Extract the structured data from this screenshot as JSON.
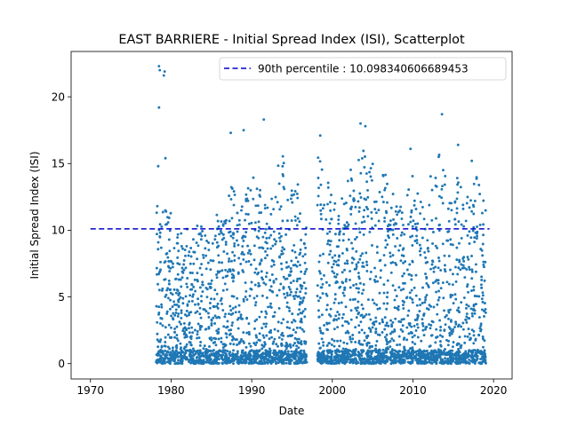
{
  "chart_data": {
    "type": "scatter",
    "title": "EAST BARRIERE - Initial Spread Index (ISI), Scatterplot",
    "xlabel": "Date",
    "ylabel": "Initial Spread Index (ISI)",
    "xlim": [
      1967.6,
      2022.3
    ],
    "ylim": [
      -1.15,
      23.4
    ],
    "x_ticks": [
      1970,
      1980,
      1990,
      2000,
      2010,
      2020
    ],
    "y_ticks": [
      0,
      5,
      10,
      15,
      20
    ],
    "grid": false,
    "legend": {
      "position": "top-right",
      "entries": [
        "90th percentile : 10.098340606689453"
      ]
    },
    "threshold": {
      "name": "90th percentile : 10.098340606689453",
      "value": 10.098340606689453,
      "x_start": 1970,
      "x_end": 2019.5,
      "color": "#0000cc",
      "style": "dashed"
    },
    "series": [
      {
        "name": "ISI",
        "color": "#1f77b4",
        "data_range": [
          1978.3,
          2019
        ],
        "gap": [
          1996.9,
          1998.3
        ],
        "notable_points": [
          {
            "x": 1978.5,
            "y": 22.3
          },
          {
            "x": 1978.6,
            "y": 22.0
          },
          {
            "x": 1979.2,
            "y": 21.9
          },
          {
            "x": 1979.1,
            "y": 21.6
          },
          {
            "x": 1978.5,
            "y": 19.2
          },
          {
            "x": 1979.3,
            "y": 15.4
          },
          {
            "x": 1978.4,
            "y": 14.8
          },
          {
            "x": 1987.4,
            "y": 17.3
          },
          {
            "x": 1989.0,
            "y": 17.5
          },
          {
            "x": 1991.5,
            "y": 18.3
          },
          {
            "x": 1998.5,
            "y": 17.1
          },
          {
            "x": 2003.5,
            "y": 18.0
          },
          {
            "x": 2004.1,
            "y": 17.8
          },
          {
            "x": 2009.7,
            "y": 16.1
          },
          {
            "x": 2013.6,
            "y": 18.7
          },
          {
            "x": 2015.6,
            "y": 16.4
          },
          {
            "x": 2017.3,
            "y": 15.2
          }
        ],
        "seasons": [
          {
            "x": 1978.6,
            "peak": 12.8
          },
          {
            "x": 1979.6,
            "peak": 12.4
          },
          {
            "x": 1980.6,
            "peak": 9.8
          },
          {
            "x": 1981.6,
            "peak": 10.2
          },
          {
            "x": 1982.6,
            "peak": 9.9
          },
          {
            "x": 1983.6,
            "peak": 10.5
          },
          {
            "x": 1984.6,
            "peak": 9.6
          },
          {
            "x": 1985.6,
            "peak": 11.2
          },
          {
            "x": 1986.6,
            "peak": 11.5
          },
          {
            "x": 1987.6,
            "peak": 14.0
          },
          {
            "x": 1988.6,
            "peak": 12.5
          },
          {
            "x": 1989.6,
            "peak": 15.0
          },
          {
            "x": 1990.6,
            "peak": 14.2
          },
          {
            "x": 1991.6,
            "peak": 13.0
          },
          {
            "x": 1992.6,
            "peak": 12.6
          },
          {
            "x": 1993.6,
            "peak": 15.6
          },
          {
            "x": 1994.6,
            "peak": 13.3
          },
          {
            "x": 1995.6,
            "peak": 13.6
          },
          {
            "x": 1996.4,
            "peak": 10.8
          },
          {
            "x": 1998.6,
            "peak": 16.0
          },
          {
            "x": 1999.6,
            "peak": 14.0
          },
          {
            "x": 2000.6,
            "peak": 12.6
          },
          {
            "x": 2001.6,
            "peak": 13.8
          },
          {
            "x": 2002.6,
            "peak": 14.6
          },
          {
            "x": 2003.6,
            "peak": 16.0
          },
          {
            "x": 2004.6,
            "peak": 15.3
          },
          {
            "x": 2005.6,
            "peak": 13.0
          },
          {
            "x": 2006.6,
            "peak": 14.5
          },
          {
            "x": 2007.6,
            "peak": 13.5
          },
          {
            "x": 2008.6,
            "peak": 12.6
          },
          {
            "x": 2009.6,
            "peak": 14.3
          },
          {
            "x": 2010.6,
            "peak": 13.1
          },
          {
            "x": 2011.6,
            "peak": 12.0
          },
          {
            "x": 2012.6,
            "peak": 14.6
          },
          {
            "x": 2013.6,
            "peak": 15.7
          },
          {
            "x": 2014.6,
            "peak": 12.3
          },
          {
            "x": 2015.6,
            "peak": 14.6
          },
          {
            "x": 2016.6,
            "peak": 13.1
          },
          {
            "x": 2017.6,
            "peak": 14.0
          },
          {
            "x": 2018.6,
            "peak": 13.8
          }
        ],
        "points_per_season": 90
      }
    ]
  }
}
